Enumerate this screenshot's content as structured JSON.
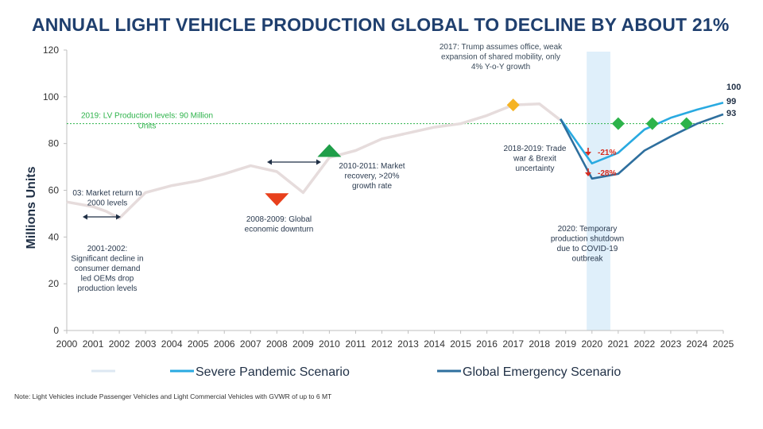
{
  "title": "ANNUAL LIGHT VEHICLE PRODUCTION GLOBAL TO DECLINE BY ABOUT 21%",
  "note": "Note: Light Vehicles include Passenger Vehicles and Light Commercial Vehicles with GVWR of up to 6 MT",
  "chart_data": {
    "type": "line",
    "title": "ANNUAL LIGHT VEHICLE PRODUCTION GLOBAL TO DECLINE BY ABOUT 21%",
    "ylabel": "Millions Units",
    "xlabel": "",
    "ylim": [
      0,
      120
    ],
    "xlim": [
      2000,
      2025
    ],
    "yticks": [
      0,
      20,
      40,
      60,
      80,
      100,
      120
    ],
    "xticks": [
      "2000",
      "2001",
      "2002",
      "2003",
      "2004",
      "2005",
      "2006",
      "2007",
      "2008",
      "2009",
      "2010",
      "2011",
      "2012",
      "2013",
      "2014",
      "2015",
      "2016",
      "2017",
      "2018",
      "2019",
      "2020",
      "2021",
      "2022",
      "2023",
      "2024",
      "2025"
    ],
    "grid": false,
    "legend_position": "bottom",
    "reference_line": {
      "value": 88.5,
      "label": "2019: LV Production levels: 90 Million Units",
      "color": "#2db34a"
    },
    "series": [
      {
        "name": "",
        "color": "#e6dcdc",
        "x": [
          2000,
          2001,
          2001.5,
          2002,
          2003,
          2004,
          2005,
          2006,
          2007,
          2008,
          2009,
          2010,
          2011,
          2012,
          2013,
          2014,
          2015,
          2016,
          2017,
          2018,
          2018.8
        ],
        "y": [
          55,
          53,
          51,
          48,
          59,
          62,
          64,
          67,
          70.5,
          68,
          59,
          74,
          77,
          82,
          84.5,
          87,
          88.5,
          92,
          96.5,
          97,
          90
        ]
      },
      {
        "name": "Severe Pandemic Scenario",
        "color": "#29aae1",
        "x": [
          2018.8,
          2020,
          2021,
          2022,
          2023,
          2024,
          2025
        ],
        "y": [
          90.5,
          71.5,
          76,
          86,
          91,
          94.5,
          97.5
        ]
      },
      {
        "name": "Global Emergency Scenario",
        "color": "#2e6f9e",
        "x": [
          2018.8,
          2020,
          2021,
          2022,
          2023,
          2024,
          2025
        ],
        "y": [
          90.5,
          65,
          67,
          77,
          83,
          88.5,
          92.5
        ]
      }
    ],
    "end_labels": [
      "100",
      "99",
      "93"
    ],
    "markers": [
      {
        "shape": "triangle-down",
        "color": "#e8401c",
        "x": 2008,
        "y": 56
      },
      {
        "shape": "triangle-up",
        "color": "#1f9e49",
        "x": 2010,
        "y": 77
      },
      {
        "shape": "diamond",
        "color": "#f5b323",
        "x": 2017,
        "y": 96.5
      },
      {
        "shape": "diamond",
        "color": "#2db34a",
        "x": 2021,
        "y": 88.5
      },
      {
        "shape": "diamond",
        "color": "#2db34a",
        "x": 2022.3,
        "y": 88.5
      },
      {
        "shape": "diamond",
        "color": "#2db34a",
        "x": 2023.6,
        "y": 88.5
      }
    ],
    "highlight_band": {
      "x": [
        2019.8,
        2020.7
      ],
      "color": "#dfeffa"
    },
    "annotations": [
      {
        "lines": [
          "2017: Trump assumes office, weak",
          "expansion of shared mobility, only",
          "4% Y-o-Y growth"
        ]
      },
      {
        "lines": [
          "03: Market return to",
          "2000 levels"
        ]
      },
      {
        "lines": [
          "2001-2002:",
          "Significant decline in",
          "consumer demand",
          "led OEMs drop",
          "production levels"
        ]
      },
      {
        "lines": [
          "2008-2009: Global",
          "economic downturn"
        ]
      },
      {
        "lines": [
          "2010-2011: Market",
          "recovery, >20%",
          "growth rate"
        ]
      },
      {
        "lines": [
          "2018-2019: Trade",
          "war & Brexit",
          "uncertainty"
        ]
      },
      {
        "lines": [
          "2020: Temporary",
          "production shutdown",
          "due to COVID-19",
          "outbreak"
        ]
      },
      {
        "lines": [
          "-21%"
        ]
      },
      {
        "lines": [
          "-28%"
        ]
      }
    ],
    "legend": [
      {
        "label": "",
        "color": "#dde8f2"
      },
      {
        "label": "Severe Pandemic Scenario",
        "color": "#29aae1"
      },
      {
        "label": "Global Emergency Scenario",
        "color": "#2e6f9e"
      }
    ]
  }
}
